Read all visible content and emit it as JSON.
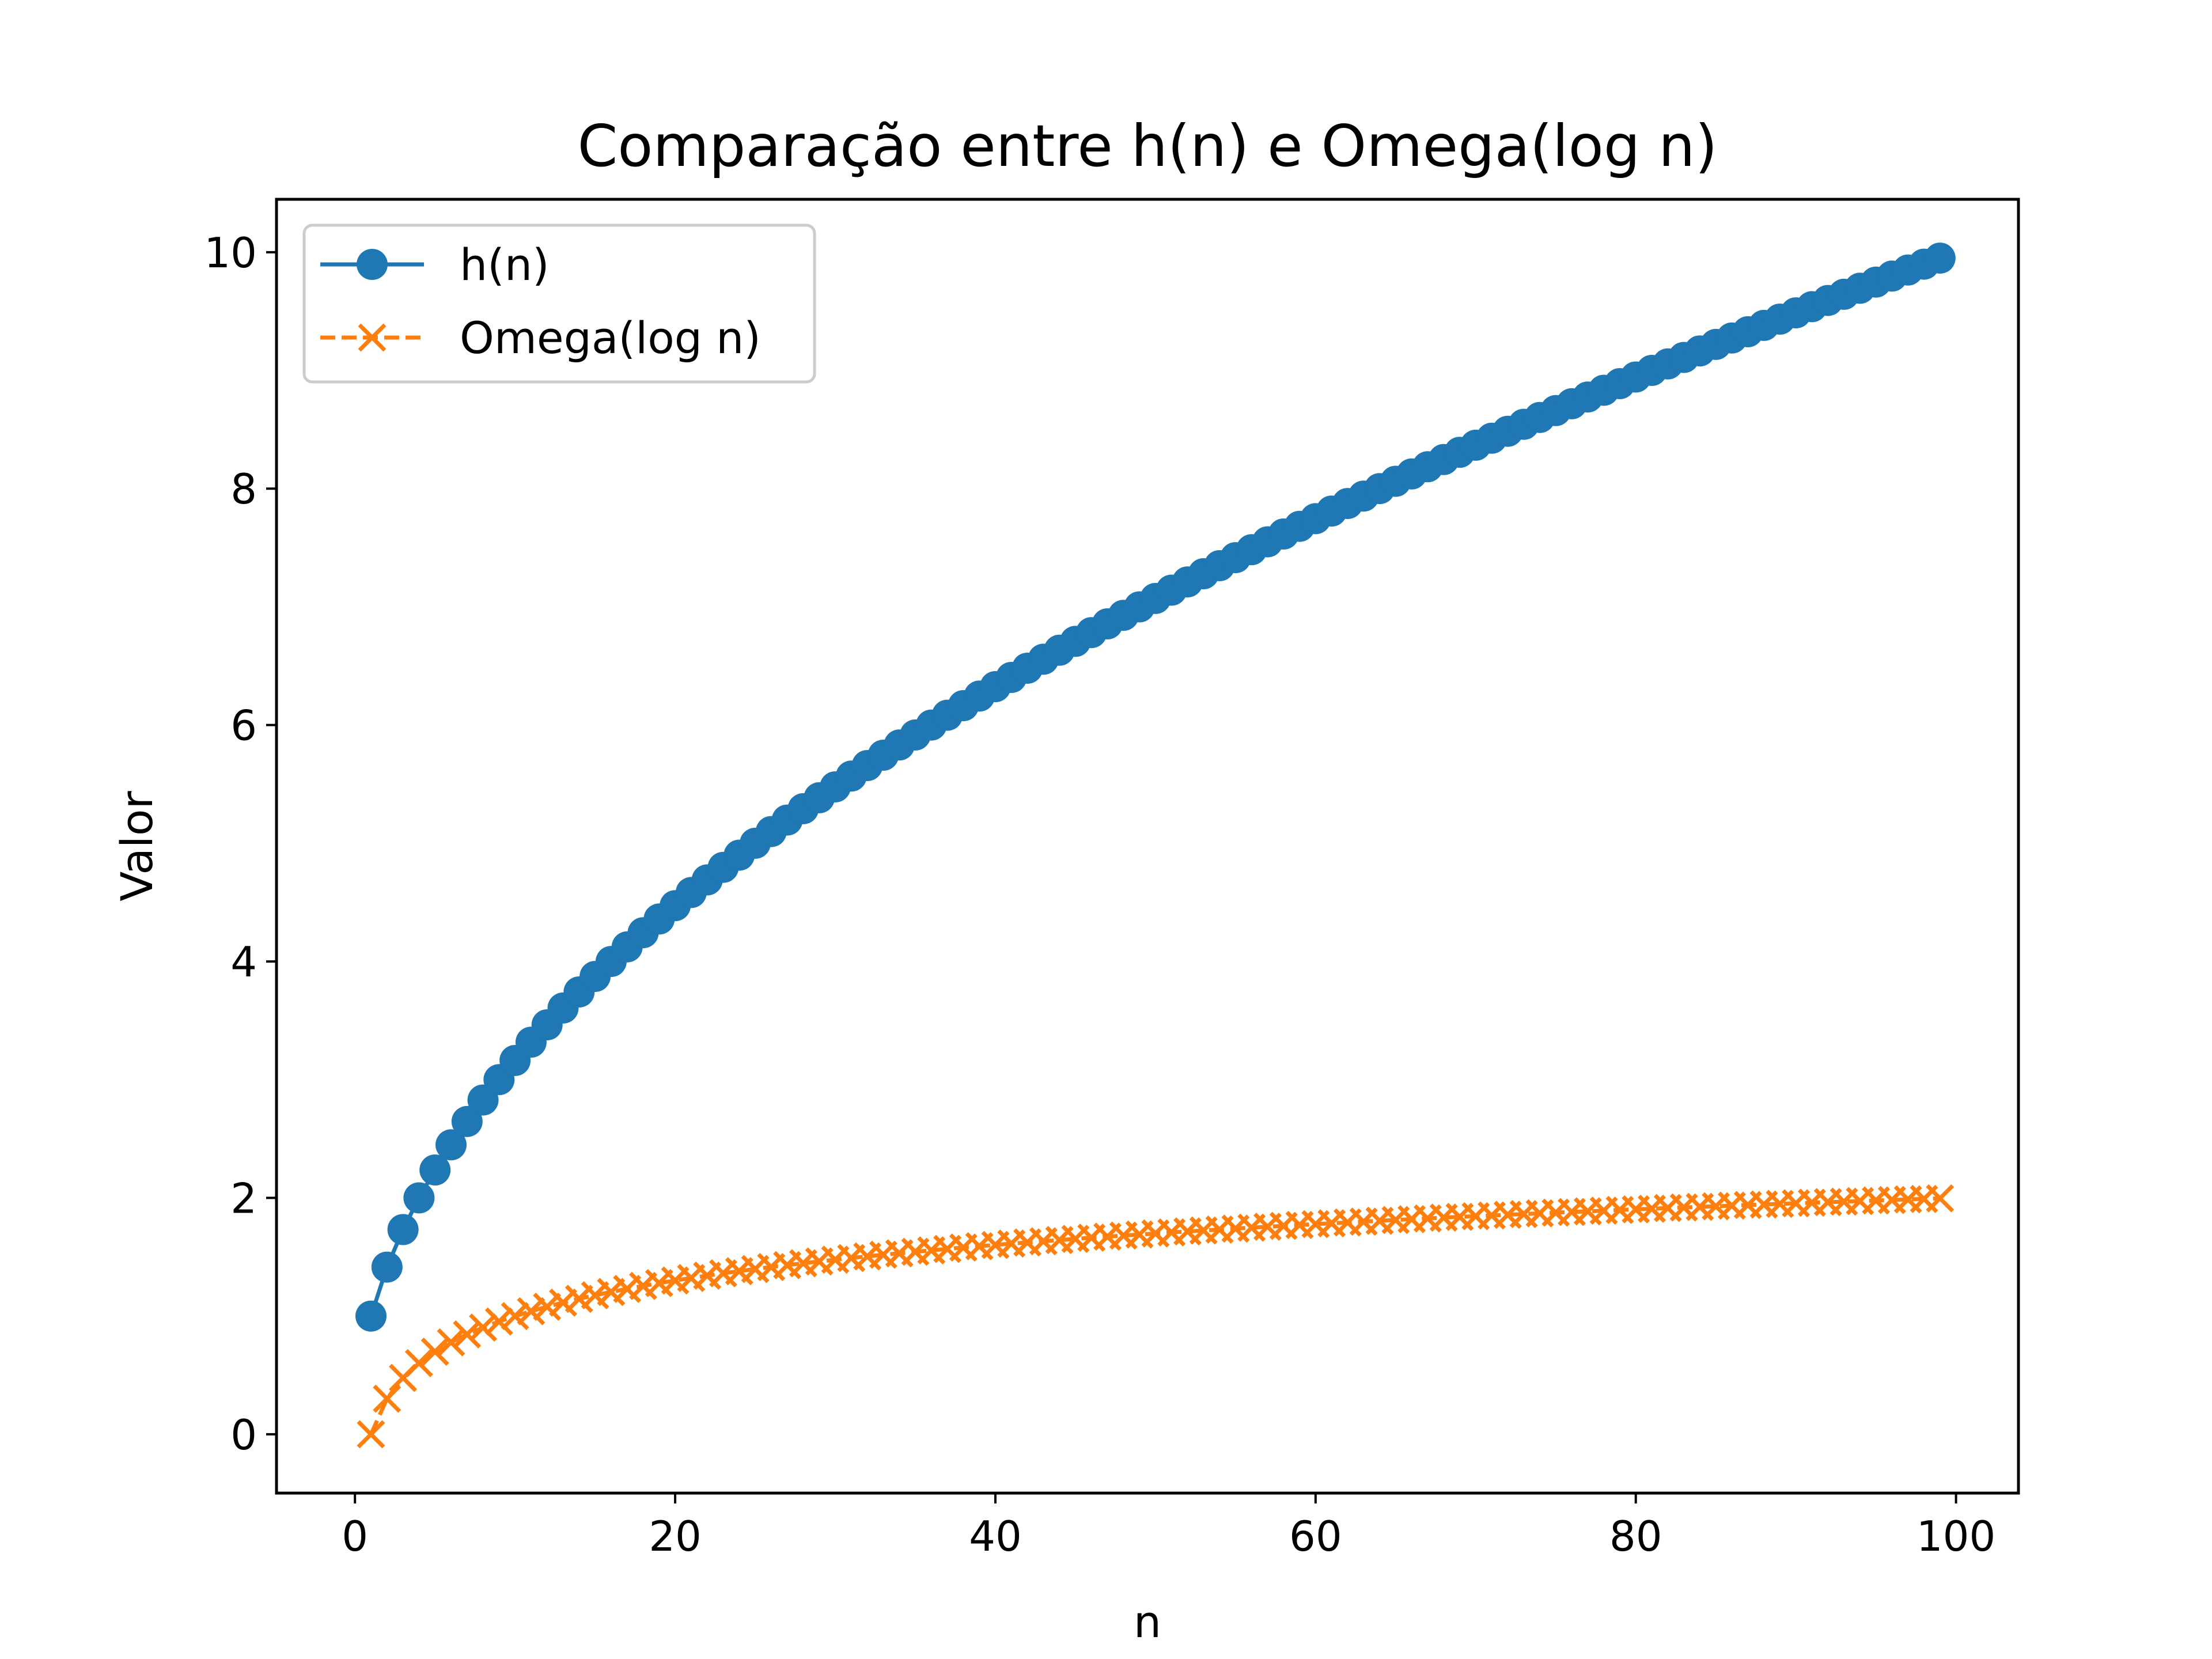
{
  "chart_data": {
    "type": "line",
    "title": "Comparação entre h(n) e Omega(log n)",
    "xlabel": "n",
    "ylabel": "Valor",
    "xlim": [
      -4.9,
      103.9
    ],
    "ylim": [
      -0.4975,
      10.4475
    ],
    "xticks": [
      0,
      20,
      40,
      60,
      80,
      100
    ],
    "yticks": [
      0,
      2,
      4,
      6,
      8,
      10
    ],
    "grid": false,
    "legend_position": "top-left",
    "x": [
      1,
      2,
      3,
      4,
      5,
      6,
      7,
      8,
      9,
      10,
      11,
      12,
      13,
      14,
      15,
      16,
      17,
      18,
      19,
      20,
      21,
      22,
      23,
      24,
      25,
      26,
      27,
      28,
      29,
      30,
      31,
      32,
      33,
      34,
      35,
      36,
      37,
      38,
      39,
      40,
      41,
      42,
      43,
      44,
      45,
      46,
      47,
      48,
      49,
      50,
      51,
      52,
      53,
      54,
      55,
      56,
      57,
      58,
      59,
      60,
      61,
      62,
      63,
      64,
      65,
      66,
      67,
      68,
      69,
      70,
      71,
      72,
      73,
      74,
      75,
      76,
      77,
      78,
      79,
      80,
      81,
      82,
      83,
      84,
      85,
      86,
      87,
      88,
      89,
      90,
      91,
      92,
      93,
      94,
      95,
      96,
      97,
      98,
      99
    ],
    "series": [
      {
        "name": "h(n)",
        "color": "#1f77b4",
        "marker": "circle",
        "linestyle": "solid",
        "values": [
          1.0,
          1.414,
          1.732,
          2.0,
          2.236,
          2.449,
          2.646,
          2.828,
          3.0,
          3.162,
          3.317,
          3.464,
          3.606,
          3.742,
          3.873,
          4.0,
          4.123,
          4.243,
          4.359,
          4.472,
          4.583,
          4.69,
          4.796,
          4.899,
          5.0,
          5.099,
          5.196,
          5.292,
          5.385,
          5.477,
          5.568,
          5.657,
          5.745,
          5.831,
          5.916,
          6.0,
          6.083,
          6.164,
          6.245,
          6.325,
          6.403,
          6.481,
          6.557,
          6.633,
          6.708,
          6.782,
          6.856,
          6.928,
          7.0,
          7.071,
          7.141,
          7.211,
          7.28,
          7.348,
          7.416,
          7.483,
          7.55,
          7.616,
          7.681,
          7.746,
          7.81,
          7.874,
          7.937,
          8.0,
          8.062,
          8.124,
          8.185,
          8.246,
          8.307,
          8.367,
          8.426,
          8.485,
          8.544,
          8.602,
          8.66,
          8.718,
          8.775,
          8.832,
          8.888,
          8.944,
          9.0,
          9.055,
          9.11,
          9.165,
          9.22,
          9.274,
          9.327,
          9.381,
          9.434,
          9.487,
          9.539,
          9.592,
          9.644,
          9.695,
          9.747,
          9.798,
          9.849,
          9.899,
          9.95
        ]
      },
      {
        "name": "Omega(log n)",
        "color": "#ff7f0e",
        "marker": "x",
        "linestyle": "dashed",
        "values": [
          0.0,
          0.301,
          0.477,
          0.602,
          0.699,
          0.778,
          0.845,
          0.903,
          0.954,
          1.0,
          1.041,
          1.079,
          1.114,
          1.146,
          1.176,
          1.204,
          1.23,
          1.255,
          1.279,
          1.301,
          1.322,
          1.342,
          1.362,
          1.38,
          1.398,
          1.415,
          1.431,
          1.447,
          1.462,
          1.477,
          1.491,
          1.505,
          1.519,
          1.531,
          1.544,
          1.556,
          1.568,
          1.58,
          1.591,
          1.602,
          1.613,
          1.623,
          1.633,
          1.643,
          1.653,
          1.663,
          1.672,
          1.681,
          1.69,
          1.699,
          1.708,
          1.716,
          1.724,
          1.732,
          1.74,
          1.748,
          1.756,
          1.763,
          1.771,
          1.778,
          1.785,
          1.792,
          1.799,
          1.806,
          1.813,
          1.82,
          1.826,
          1.833,
          1.839,
          1.845,
          1.851,
          1.857,
          1.863,
          1.869,
          1.875,
          1.881,
          1.886,
          1.892,
          1.898,
          1.903,
          1.908,
          1.914,
          1.919,
          1.924,
          1.929,
          1.934,
          1.94,
          1.944,
          1.949,
          1.954,
          1.959,
          1.964,
          1.968,
          1.973,
          1.978,
          1.982,
          1.987,
          1.991,
          1.996
        ]
      }
    ]
  }
}
